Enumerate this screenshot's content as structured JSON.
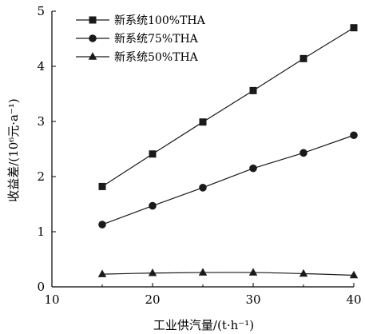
{
  "chart_data": {
    "type": "line",
    "xlabel": "工业供汽量/(t·h⁻¹)",
    "ylabel": "收益差/(10⁶元·a⁻¹)",
    "xlim": [
      10,
      40
    ],
    "ylim": [
      0,
      5
    ],
    "xticks": [
      10,
      20,
      30,
      40
    ],
    "yticks": [
      0,
      1,
      2,
      3,
      4,
      5
    ],
    "xtick_labels": [
      "10",
      "20",
      "30",
      "40"
    ],
    "ytick_labels": [
      "0",
      "1",
      "2",
      "3",
      "4",
      "5"
    ],
    "grid": false,
    "legend_position": "top-left",
    "x": [
      15,
      20,
      25,
      30,
      35,
      40
    ],
    "series": [
      {
        "name": "新系统100%THA",
        "marker": "square",
        "values": [
          1.82,
          2.41,
          2.99,
          3.56,
          4.14,
          4.7
        ]
      },
      {
        "name": "新系统75%THA",
        "marker": "circle",
        "values": [
          1.13,
          1.47,
          1.8,
          2.15,
          2.43,
          2.75
        ]
      },
      {
        "name": "新系统50%THA",
        "marker": "triangle",
        "values": [
          0.23,
          0.25,
          0.26,
          0.26,
          0.24,
          0.21
        ]
      }
    ],
    "colors": {
      "line": "#1a1a1a",
      "axis": "#000000"
    }
  }
}
